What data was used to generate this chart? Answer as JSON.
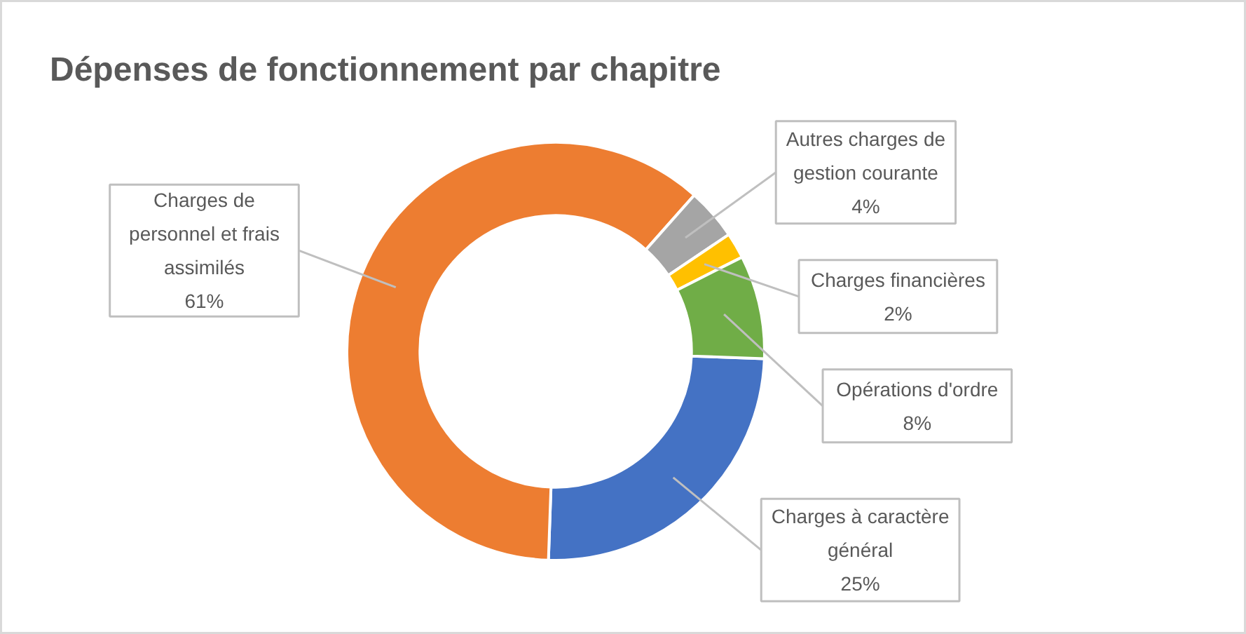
{
  "chart_data": {
    "type": "donut",
    "title": "Dépenses de fonctionnement par chapitre",
    "categories": [
      "Charges à caractère général",
      "Charges de personnel et frais assimilés",
      "Autres charges de gestion courante",
      "Charges financières",
      "Opérations d'ordre"
    ],
    "values": [
      25,
      61,
      4,
      2,
      8
    ],
    "value_labels": [
      "25%",
      "61%",
      "4%",
      "2%",
      "8%"
    ],
    "colors": [
      "#4472c4",
      "#ed7d31",
      "#a5a5a5",
      "#ffc000",
      "#70ad47"
    ]
  }
}
